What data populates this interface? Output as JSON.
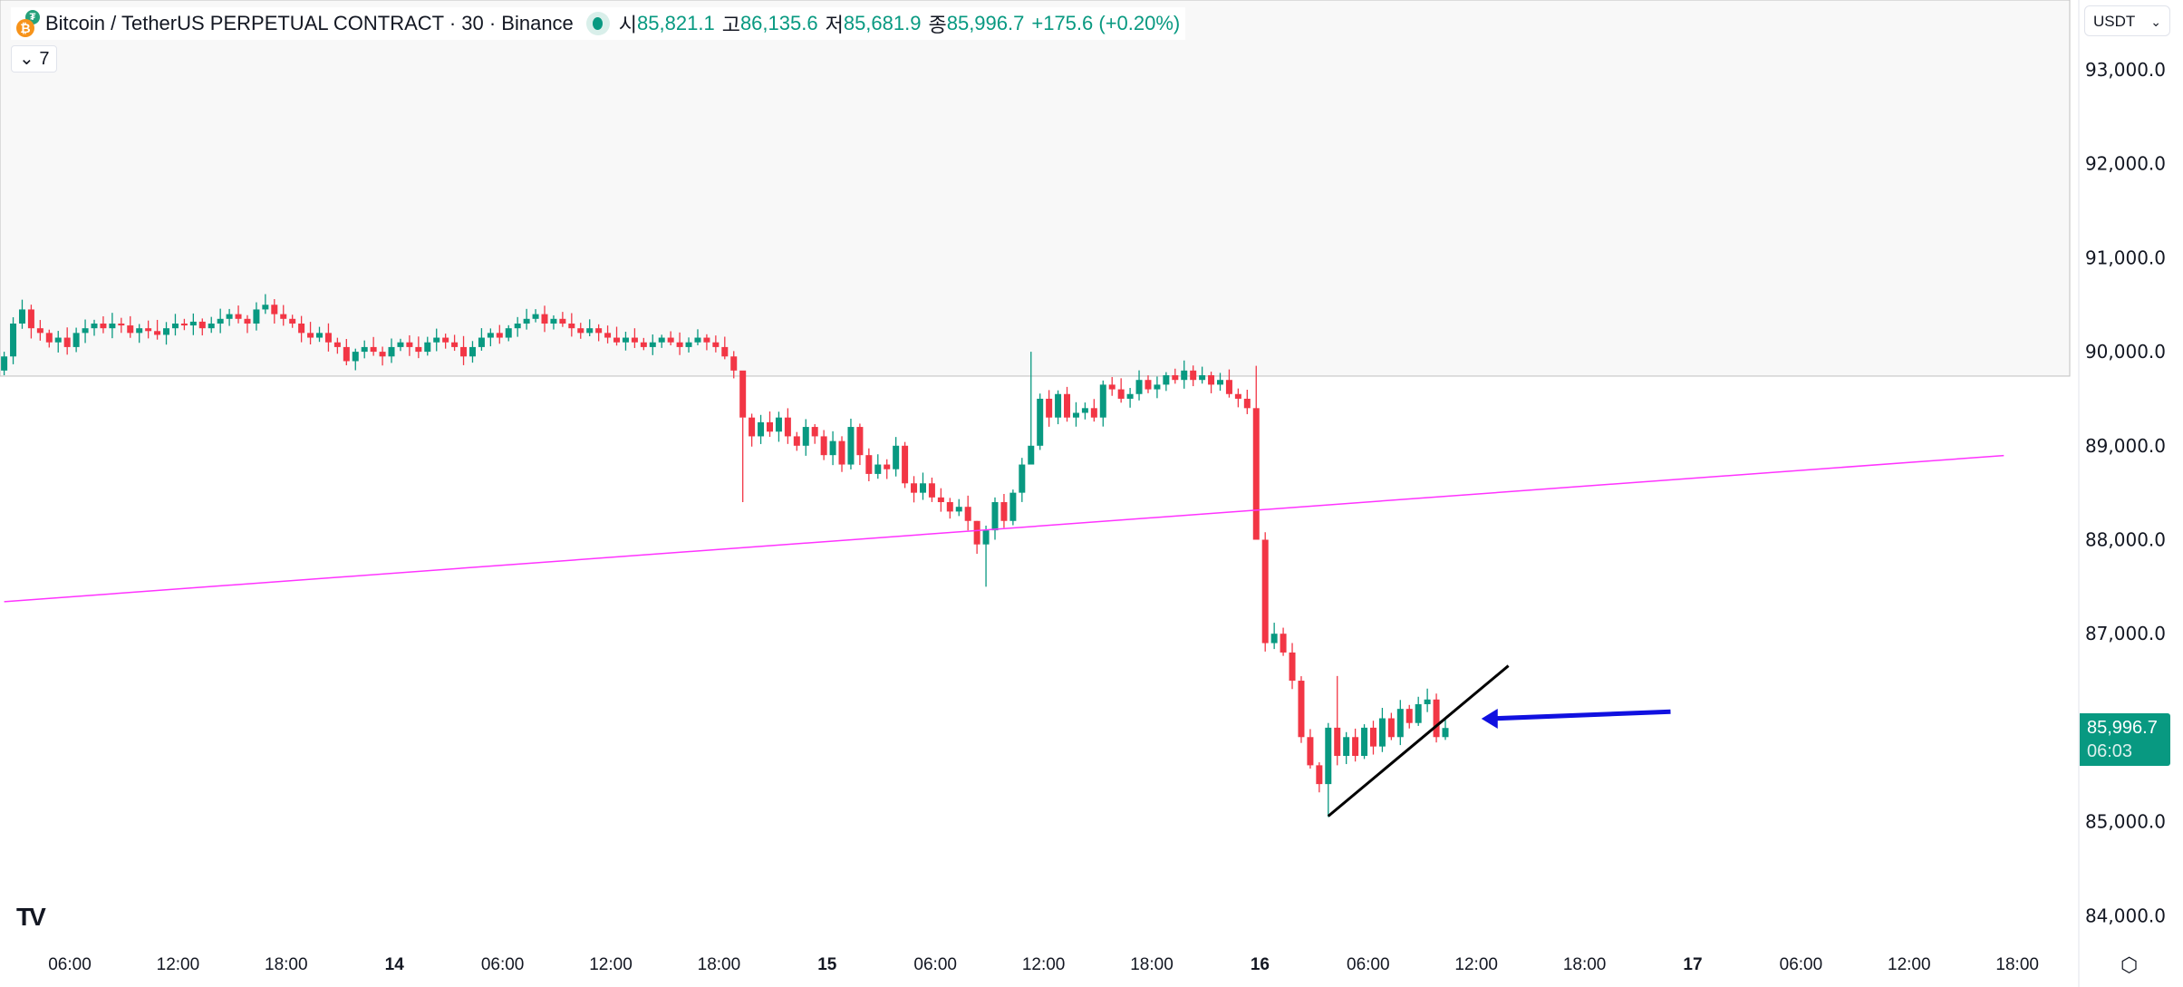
{
  "header": {
    "symbol": "Bitcoin / TetherUS PERPETUAL CONTRACT · 30 · Binance",
    "open_label": "시",
    "open": "85,821.1",
    "high_label": "고",
    "high": "86,135.6",
    "low_label": "저",
    "low": "85,681.9",
    "close_label": "종",
    "close": "85,996.7",
    "change": "+175.6 (+0.20%)"
  },
  "indicator_toggle": {
    "label": "7"
  },
  "currency_selector": {
    "value": "USDT"
  },
  "last_price": {
    "value": "85,996.7",
    "countdown": "06:03"
  },
  "price_axis": [
    "93,000.0",
    "92,000.0",
    "91,000.0",
    "90,000.0",
    "89,000.0",
    "88,000.0",
    "87,000.0",
    "85,000.0",
    "84,000.0"
  ],
  "time_axis": [
    "06:00",
    "12:00",
    "18:00",
    "14",
    "06:00",
    "12:00",
    "18:00",
    "15",
    "06:00",
    "12:00",
    "18:00",
    "16",
    "06:00",
    "12:00",
    "18:00",
    "17",
    "06:00",
    "12:00",
    "18:00"
  ],
  "colors": {
    "up": "#089981",
    "down": "#f23645",
    "trendline": "#ff33ff",
    "arrow": "#1010e0",
    "shade": "#f8f8f8"
  },
  "chart_data": {
    "type": "candlestick",
    "interval": "30",
    "ylim": [
      83700,
      93400
    ],
    "first_open": 89800,
    "closes": [
      89950,
      90300,
      90450,
      90250,
      90200,
      90100,
      90150,
      90050,
      90200,
      90250,
      90300,
      90250,
      90300,
      90280,
      90200,
      90250,
      90220,
      90180,
      90250,
      90300,
      90280,
      90320,
      90250,
      90300,
      90350,
      90400,
      90350,
      90300,
      90450,
      90500,
      90400,
      90350,
      90300,
      90200,
      90150,
      90200,
      90100,
      90050,
      89900,
      90000,
      90050,
      90000,
      89950,
      90050,
      90100,
      90050,
      90000,
      90100,
      90150,
      90100,
      90050,
      89950,
      90050,
      90150,
      90200,
      90150,
      90250,
      90300,
      90350,
      90400,
      90300,
      90350,
      90300,
      90250,
      90200,
      90250,
      90200,
      90150,
      90100,
      90150,
      90100,
      90050,
      90100,
      90150,
      90100,
      90050,
      90100,
      90150,
      90100,
      90050,
      89950,
      89800,
      89300,
      89100,
      89250,
      89150,
      89300,
      89100,
      89000,
      89200,
      89100,
      88900,
      89050,
      88800,
      89200,
      88900,
      88700,
      88800,
      88750,
      89000,
      88600,
      88500,
      88600,
      88450,
      88400,
      88300,
      88350,
      88200,
      87950,
      88100,
      88400,
      88200,
      88500,
      88800,
      89000,
      89500,
      89300,
      89550,
      89300,
      89350,
      89400,
      89300,
      89650,
      89600,
      89500,
      89550,
      89700,
      89600,
      89650,
      89750,
      89700,
      89800,
      89700,
      89750,
      89650,
      89700,
      89550,
      89500,
      89400,
      88000,
      86900,
      87000,
      86800,
      86500,
      85900,
      85600,
      85400,
      86000,
      85700,
      85900,
      85700,
      86000,
      85800,
      86100,
      85900,
      86200,
      86050,
      86250,
      86300,
      85900,
      85997
    ],
    "extremes": {
      "0": [
        90000,
        89750
      ],
      "82": [
        89300,
        88400
      ],
      "108": [
        88200,
        87850
      ],
      "109": [
        88150,
        87500
      ],
      "114": [
        90000,
        88950
      ],
      "139": [
        89850,
        88000
      ],
      "147": [
        86050,
        85050
      ],
      "148": [
        86550,
        85600
      ]
    },
    "drawings": {
      "trendline_pink": {
        "from": [
          0,
          87341
        ],
        "to": [
          222,
          88896
        ]
      },
      "trendline_black": {
        "from": [
          147,
          85059
        ],
        "to": [
          167,
          86659
        ]
      },
      "arrow": {
        "from": [
          185,
          86170
        ],
        "to": [
          164,
          86096
        ]
      },
      "shaded_zone_above": 89741
    }
  }
}
